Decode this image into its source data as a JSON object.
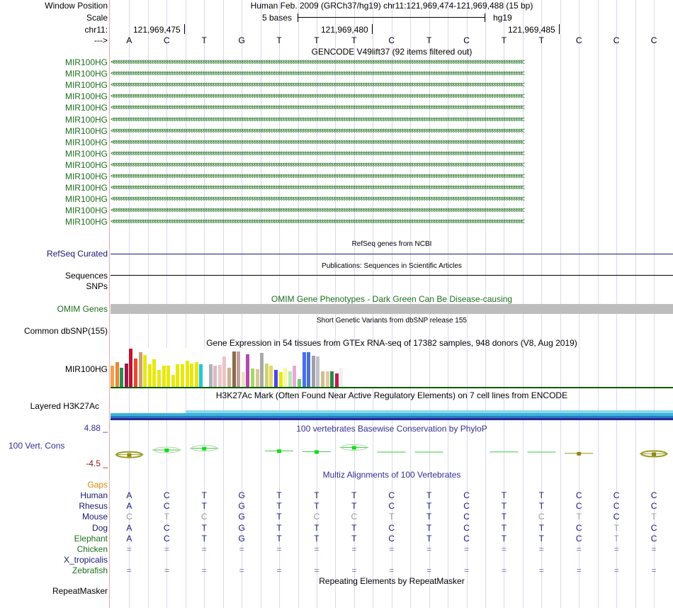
{
  "header": {
    "window_position_label": "Window Position",
    "assembly_text": "Human Feb. 2009 (GRCh37/hg19)   chr11:121,969,474-121,969,488 (15 bp)",
    "scale_label": "Scale",
    "scale_text": "5 bases",
    "scale_db": "hg19",
    "chrom_label": "chr11:",
    "positions": [
      "121,969,475",
      "121,969,480",
      "121,969,485"
    ],
    "strand_label": "--->",
    "bases": [
      "A",
      "C",
      "T",
      "G",
      "T",
      "T",
      "T",
      "C",
      "T",
      "C",
      "T",
      "T",
      "C",
      "C",
      "C"
    ]
  },
  "gencode": {
    "title": "GENCODE V49lift37 (92 items filtered out)",
    "gene_names": [
      "MIR100HG",
      "MIR100HG",
      "MIR100HG",
      "MIR100HG",
      "MIR100HG",
      "MIR100HG",
      "MIR100HG",
      "MIR100HG",
      "MIR100HG",
      "MIR100HG",
      "MIR100HG",
      "MIR100HG",
      "MIR100HG",
      "MIR100HG",
      "MIR100HG"
    ],
    "color": "#1d6f1d"
  },
  "refseq": {
    "title": "RefSeq genes from NCBI",
    "label": "RefSeq Curated",
    "color": "#191970"
  },
  "publications": {
    "title": "Publications: Sequences in Scientific Articles",
    "label": "Sequences"
  },
  "snps_label": "SNPs",
  "omim": {
    "title": "OMIM Gene Phenotypes - Dark Green Can Be Disease-causing",
    "label": "OMIM Genes",
    "color": "#1d6f1d"
  },
  "dbsnp": {
    "title": "Short Genetic Variants from dbSNP release 155",
    "label": "Common dbSNP(155)"
  },
  "gtex": {
    "title": "Gene Expression in 54 tissues from GTEx RNA-seq of 17382 samples, 948 donors (V8, Aug 2019)",
    "label": "MIR100HG",
    "tissue_levels": [
      0.55,
      0.65,
      0.5,
      0.62,
      1.0,
      0.75,
      0.9,
      0.83,
      0.6,
      0.72,
      0.45,
      0.55,
      0.55,
      0.32,
      0.6,
      0.6,
      0.68,
      0.62,
      0.65,
      0.6,
      0.65,
      0.6,
      0.55,
      0.58,
      0.8,
      0.5,
      0.92,
      0.92,
      0.38,
      0.85,
      0.48,
      0.46,
      0.88,
      0.62,
      0.55,
      0.44,
      0.38,
      0.5,
      0.4,
      0.56,
      0.2,
      0.9,
      0.9,
      0.82,
      0.8,
      0.4,
      0.4,
      0.4,
      0.36,
      0.5,
      0.5,
      0.48,
      0.82,
      0.72
    ],
    "tissue_colors": [
      "#f5a050",
      "#e68a30",
      "#2e8b57",
      "#9a1c4d",
      "#c8102e",
      "#e84a2c",
      "#c9a07a",
      "#e8e810",
      "#e8e810",
      "#e8e810",
      "#e8e810",
      "#e8e810",
      "#e8e810",
      "#e8e810",
      "#e8e810",
      "#e8e810",
      "#e8e810",
      "#e8e810",
      "#e8e810",
      "#22c8d8",
      "#ffffff",
      "#aab4c0",
      "#e0b8c0",
      "#e8c8c8",
      "#ecc4c8",
      "#d0b090",
      "#8b6b4a",
      "#c0a0a0",
      "#f0e0c0",
      "#b04ab0",
      "#a8d860",
      "#d8c898",
      "#a8a8a8",
      "#c8d870",
      "#e8d860",
      "#4848e8",
      "#e8e810",
      "#f8f8a0",
      "#b8e8b0",
      "#e8a8d8",
      "#68d068",
      "#4870e8",
      "#4870d8",
      "#a0a0a8",
      "#c0c0c8",
      "#d0c090",
      "#e8c8a0",
      "#2a8a4a",
      "#c81848",
      "#f0f0f0",
      "#ffffff",
      "#ffffff",
      "#ffffff",
      "#ffffff"
    ]
  },
  "h3k27ac": {
    "title": "H3K27Ac Mark (Often Found Near Active Regulatory Elements) on 7 cell lines from ENCODE",
    "label": "Layered H3K27Ac"
  },
  "phylop": {
    "title": "100 vertebrates Basewise Conservation by PhyloP",
    "label": "100 Vert. Cons",
    "ymax": "4.88 _",
    "ymin": "-4.5 _",
    "values": [
      -0.6,
      0.5,
      0.9,
      null,
      0.3,
      0.1,
      1.1,
      0.0,
      0.0,
      null,
      0.05,
      0.0,
      -0.3,
      null,
      -0.4
    ],
    "colors": {
      "positive": "#3cc83c",
      "negative": "#9a9a20"
    }
  },
  "multiz": {
    "title": "Multiz Alignments of 100 Vertebrates",
    "gaps_label": "Gaps",
    "species": [
      {
        "name": "Human",
        "bases": [
          "A",
          "C",
          "T",
          "G",
          "T",
          "T",
          "T",
          "C",
          "T",
          "C",
          "T",
          "T",
          "C",
          "C",
          "C"
        ]
      },
      {
        "name": "Rhesus",
        "bases": [
          "A",
          "C",
          "T",
          "G",
          "T",
          "T",
          "T",
          "C",
          "T",
          "C",
          "T",
          "T",
          "C",
          "C",
          "C"
        ]
      },
      {
        "name": "Mouse",
        "bases": [
          "C",
          "T",
          "C",
          "G",
          "T",
          "C",
          "C",
          "T",
          "T",
          "C",
          "T",
          "C",
          "T",
          "C",
          "T"
        ]
      },
      {
        "name": "Dog",
        "bases": [
          "A",
          "C",
          "T",
          "G",
          "T",
          "T",
          "T",
          "C",
          "T",
          "C",
          "T",
          "T",
          "C",
          "T",
          "C"
        ]
      },
      {
        "name": "Elephant",
        "bases": [
          "A",
          "C",
          "T",
          "G",
          "T",
          "T",
          "T",
          "C",
          "T",
          "C",
          "T",
          "T",
          "C",
          "T",
          "C"
        ]
      },
      {
        "name": "Chicken",
        "bases": [
          "=",
          "=",
          "=",
          "=",
          "=",
          "=",
          "=",
          "=",
          "=",
          "=",
          "=",
          "=",
          "=",
          "=",
          "="
        ]
      },
      {
        "name": "X_tropicalis",
        "bases": [
          "",
          "",
          "",
          "",
          "",
          "",
          "",
          "",
          "",
          "",
          "",
          "",
          "",
          "",
          ""
        ]
      },
      {
        "name": "Zebrafish",
        "bases": [
          "=",
          "=",
          "=",
          "=",
          "=",
          "=",
          "=",
          "=",
          "=",
          "=",
          "=",
          "=",
          "=",
          "=",
          "="
        ]
      }
    ]
  },
  "repeatmasker": {
    "title": "Repeating Elements by RepeatMasker",
    "label": "RepeatMasker"
  }
}
